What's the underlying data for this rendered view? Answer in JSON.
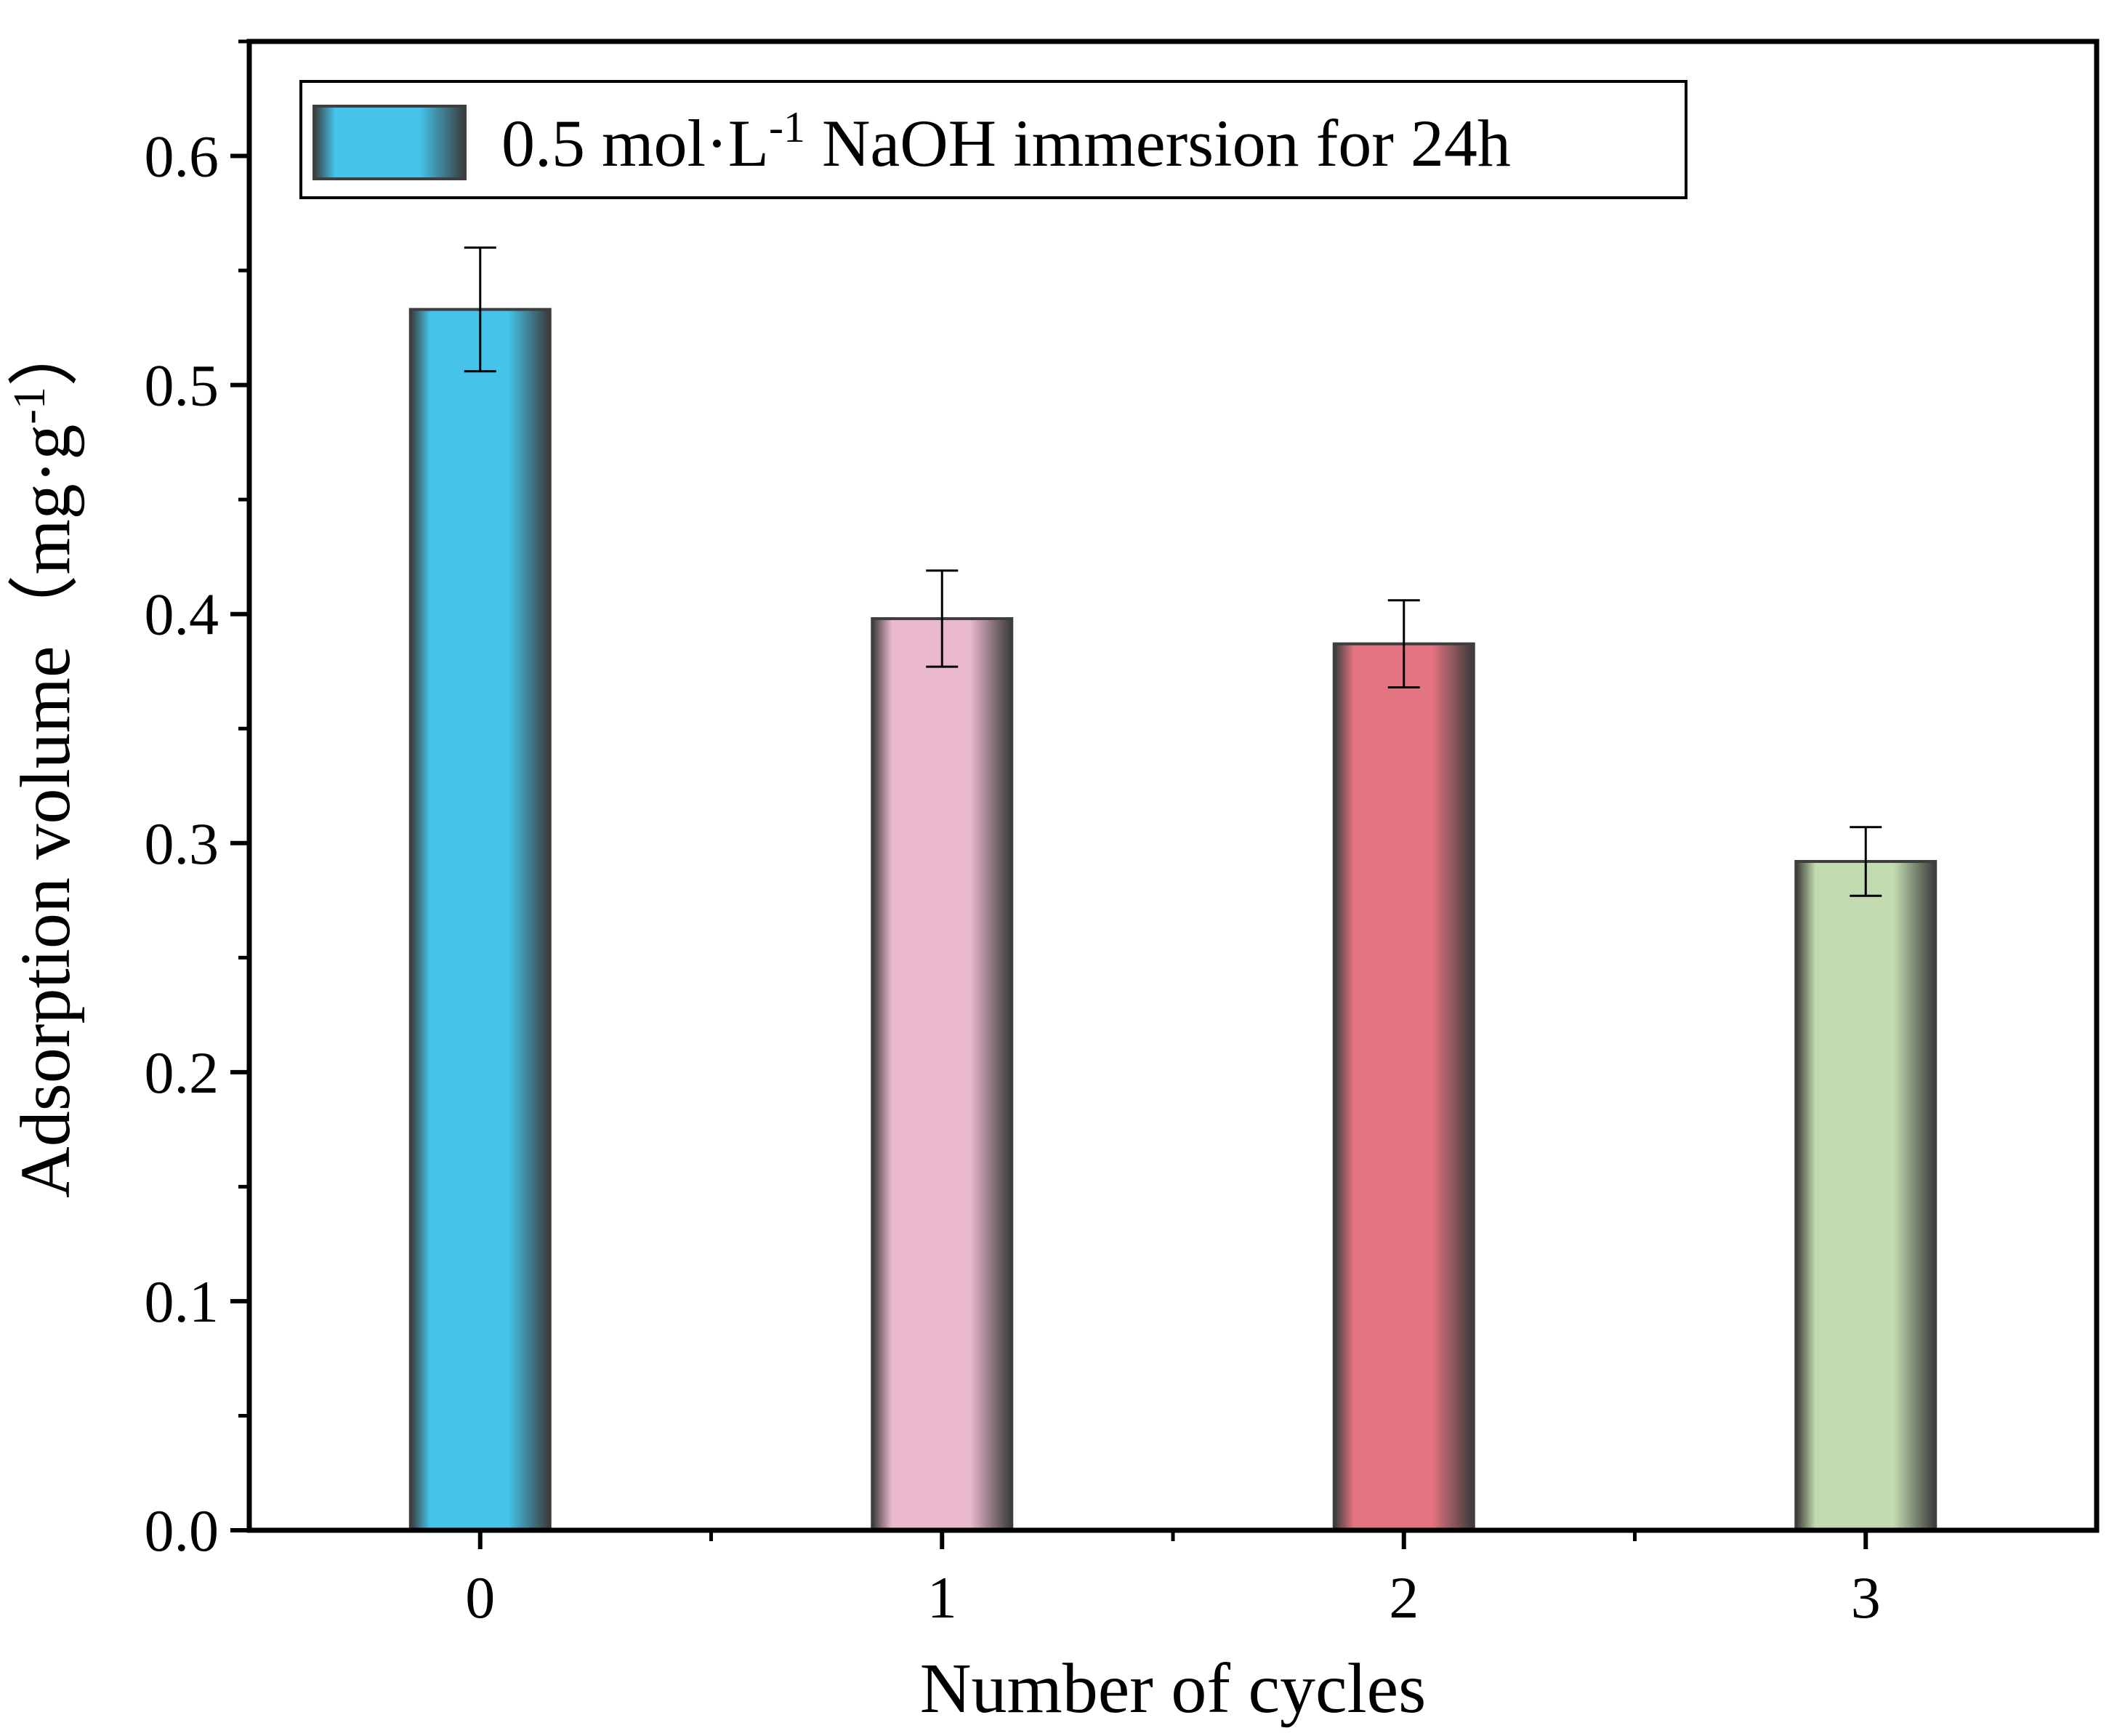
{
  "chart_data": {
    "type": "bar",
    "title": "",
    "xlabel": "Number of cycles",
    "ylabel": "Adsorption volume（mg·g-1）",
    "ylabel_parts": {
      "main": "Adsorption volume（mg·g",
      "sup": "-1",
      "close": "）"
    },
    "categories": [
      "0",
      "1",
      "2",
      "3"
    ],
    "values": [
      0.533,
      0.398,
      0.387,
      0.292
    ],
    "errors": [
      0.027,
      0.021,
      0.019,
      0.015
    ],
    "bar_colors": [
      "#45c3ea",
      "#eab8cf",
      "#e37581",
      "#c2dbb0"
    ],
    "edge_color": "#3e3e3e",
    "ylim": [
      0,
      0.65
    ],
    "yticks": [
      "0.0",
      "0.1",
      "0.2",
      "0.3",
      "0.4",
      "0.5",
      "0.6"
    ],
    "ytick_values": [
      0.0,
      0.1,
      0.2,
      0.3,
      0.4,
      0.5,
      0.6
    ],
    "xlim": [
      -0.5,
      3.5
    ],
    "legend": {
      "label": "0.5 mol·L-1 NaOH immersion for 24h",
      "parts": {
        "main": "0.5 mol·L",
        "sup": "-1",
        "rest": " NaOH immersion for 24h"
      },
      "placement": "top-left"
    },
    "grid": false
  }
}
